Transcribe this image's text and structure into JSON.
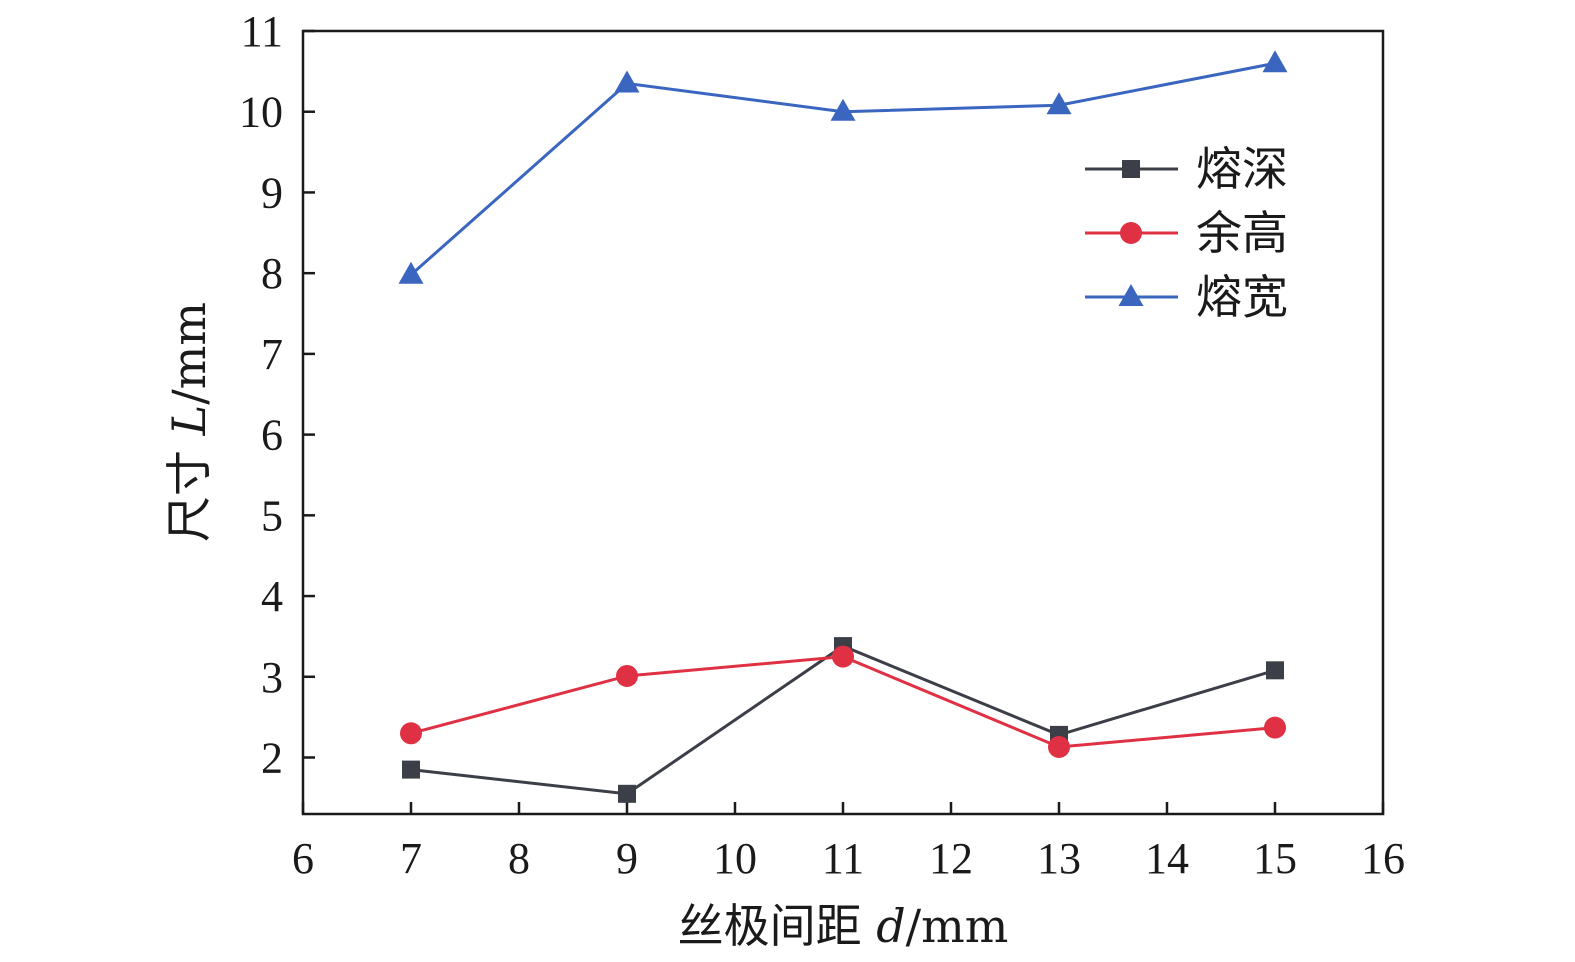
{
  "chart_data": {
    "type": "line",
    "xlabel_main": "丝极间距 ",
    "xlabel_var": "d",
    "xlabel_unit": "/mm",
    "ylabel_main": "尺寸 ",
    "ylabel_var": "L",
    "ylabel_unit": "/mm",
    "xlim": [
      6,
      16
    ],
    "ylim": [
      1.3,
      11
    ],
    "x_ticks": [
      "6",
      "7",
      "8",
      "9",
      "10",
      "11",
      "12",
      "13",
      "14",
      "15",
      "16"
    ],
    "y_ticks": [
      "2",
      "3",
      "4",
      "5",
      "6",
      "7",
      "8",
      "9",
      "10",
      "11"
    ],
    "grid": false,
    "legend_position": "top-right",
    "series": [
      {
        "name": "熔深",
        "color": "#3c3f48",
        "marker": "square",
        "x": [
          7,
          9,
          11,
          13,
          15
        ],
        "values": [
          1.85,
          1.55,
          3.38,
          2.28,
          3.08
        ]
      },
      {
        "name": "余高",
        "color": "#e03044",
        "marker": "circle",
        "x": [
          7,
          9,
          11,
          13,
          15
        ],
        "values": [
          2.3,
          3.01,
          3.25,
          2.13,
          2.37
        ]
      },
      {
        "name": "熔宽",
        "color": "#3a66c0",
        "marker": "triangle",
        "x": [
          7,
          9,
          11,
          13,
          15
        ],
        "values": [
          7.98,
          10.35,
          10.0,
          10.08,
          10.6
        ]
      }
    ]
  }
}
